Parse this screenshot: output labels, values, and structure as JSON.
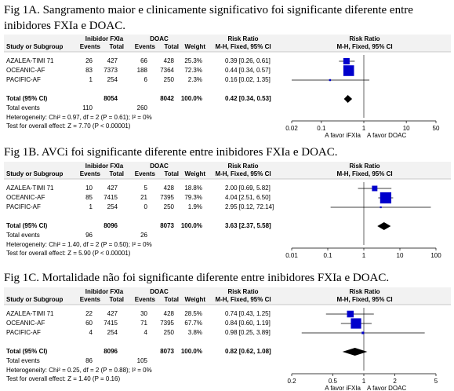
{
  "figures": [
    {
      "caption": "Fig 1A. Sangramento maior e clinicamente significativo foi significante diferente entre inibidores FXIa e DOAC.",
      "group1": "Inibidor FXIa",
      "group2": "DOAC",
      "rr_header": "Risk Ratio",
      "rr_header_plot": "Risk Ratio",
      "col_headers": [
        "Study or Subgroup",
        "Events",
        "Total",
        "Events",
        "Total",
        "Weight",
        "M-H, Fixed, 95% CI",
        "M-H, Fixed, 95% CI"
      ],
      "rows": [
        {
          "study": "AZALEA-TIMI 71",
          "e1": 26,
          "n1": 427,
          "e2": 66,
          "n2": 428,
          "weight": 25.3,
          "weight_label": "25.3%",
          "rr": 0.39,
          "lo": 0.26,
          "hi": 0.61,
          "rr_label": "0.39 [0.26, 0.61]"
        },
        {
          "study": "OCEANIC-AF",
          "e1": 83,
          "n1": 7373,
          "e2": 188,
          "n2": 7364,
          "weight": 72.3,
          "weight_label": "72.3%",
          "rr": 0.44,
          "lo": 0.34,
          "hi": 0.57,
          "rr_label": "0.44 [0.34, 0.57]"
        },
        {
          "study": "PACIFIC-AF",
          "e1": 1,
          "n1": 254,
          "e2": 6,
          "n2": 250,
          "weight": 2.3,
          "weight_label": "2.3%",
          "rr": 0.16,
          "lo": 0.02,
          "hi": 1.35,
          "rr_label": "0.16 [0.02, 1.35]"
        }
      ],
      "total": {
        "label": "Total (95% CI)",
        "n1": 8054,
        "n2": 8042,
        "weight_label": "100.0%",
        "rr": 0.42,
        "lo": 0.34,
        "hi": 0.53,
        "rr_label": "0.42 [0.34, 0.53]"
      },
      "total_events": {
        "label": "Total events",
        "e1": 110,
        "e2": 260
      },
      "heterogeneity": "Heterogeneity: Chi² = 0.97, df = 2 (P = 0.61); I² = 0%",
      "overall_test": "Test for overall effect: Z = 7.70 (P < 0.00001)",
      "axis": {
        "log": true,
        "xlim": [
          0.02,
          50
        ],
        "xticks": [
          0.02,
          0.1,
          1,
          10,
          50
        ],
        "favors": [
          "A favor iFXIa",
          "A favor DOAC"
        ]
      }
    },
    {
      "caption": "Fig 1B. AVCi foi significante diferente entre inibidores FXIa e DOAC.",
      "group1": "Inibidor FXIa",
      "group2": "DOAC",
      "rr_header": "Risk Ratio",
      "rr_header_plot": "Risk Ratio",
      "col_headers": [
        "Study or Subgroup",
        "Events",
        "Total",
        "Events",
        "Total",
        "Weight",
        "M-H, Fixed, 95% CI",
        "M-H, Fixed, 95% CI"
      ],
      "rows": [
        {
          "study": "AZALEA-TIMI 71",
          "e1": 10,
          "n1": 427,
          "e2": 5,
          "n2": 428,
          "weight": 18.8,
          "weight_label": "18.8%",
          "rr": 2.0,
          "lo": 0.69,
          "hi": 5.82,
          "rr_label": "2.00 [0.69, 5.82]"
        },
        {
          "study": "OCEANIC-AF",
          "e1": 85,
          "n1": 7415,
          "e2": 21,
          "n2": 7395,
          "weight": 79.3,
          "weight_label": "79.3%",
          "rr": 4.04,
          "lo": 2.51,
          "hi": 6.5,
          "rr_label": "4.04 [2.51, 6.50]"
        },
        {
          "study": "PACIFIC-AF",
          "e1": 1,
          "n1": 254,
          "e2": 0,
          "n2": 250,
          "weight": 1.9,
          "weight_label": "1.9%",
          "rr": 2.95,
          "lo": 0.12,
          "hi": 72.14,
          "rr_label": "2.95 [0.12, 72.14]"
        }
      ],
      "total": {
        "label": "Total (95% CI)",
        "n1": 8096,
        "n2": 8073,
        "weight_label": "100.0%",
        "rr": 3.63,
        "lo": 2.37,
        "hi": 5.58,
        "rr_label": "3.63 [2.37, 5.58]"
      },
      "total_events": {
        "label": "Total events",
        "e1": 96,
        "e2": 26
      },
      "heterogeneity": "Heterogeneity: Chi² = 1.40, df = 2 (P = 0.50); I² = 0%",
      "overall_test": "Test for overall effect: Z = 5.90 (P < 0.00001)",
      "axis": {
        "log": true,
        "xlim": [
          0.01,
          100
        ],
        "xticks": [
          0.01,
          0.1,
          1,
          10,
          100
        ],
        "favors": []
      }
    },
    {
      "caption": "Fig 1C. Mortalidade não foi significante diferente entre inibidores FXIa e DOAC.",
      "group1": "Inibidor FXIa",
      "group2": "DOAC",
      "rr_header": "Risk Ratio",
      "rr_header_plot": "Risk Ratio",
      "col_headers": [
        "Study or Subgroup",
        "Events",
        "Total",
        "Events",
        "Total",
        "Weight",
        "M-H, Fixed, 95% CI",
        "M-H, Fixed, 95% CI"
      ],
      "rows": [
        {
          "study": "AZALEA-TIMI 71",
          "e1": 22,
          "n1": 427,
          "e2": 30,
          "n2": 428,
          "weight": 28.5,
          "weight_label": "28.5%",
          "rr": 0.74,
          "lo": 0.43,
          "hi": 1.25,
          "rr_label": "0.74 [0.43, 1.25]"
        },
        {
          "study": "OCEANIC-AF",
          "e1": 60,
          "n1": 7415,
          "e2": 71,
          "n2": 7395,
          "weight": 67.7,
          "weight_label": "67.7%",
          "rr": 0.84,
          "lo": 0.6,
          "hi": 1.19,
          "rr_label": "0.84 [0.60, 1.19]"
        },
        {
          "study": "PACIFIC-AF",
          "e1": 4,
          "n1": 254,
          "e2": 4,
          "n2": 250,
          "weight": 3.8,
          "weight_label": "3.8%",
          "rr": 0.98,
          "lo": 0.25,
          "hi": 3.89,
          "rr_label": "0.98 [0.25, 3.89]"
        }
      ],
      "total": {
        "label": "Total (95% CI)",
        "n1": 8096,
        "n2": 8073,
        "weight_label": "100.0%",
        "rr": 0.82,
        "lo": 0.62,
        "hi": 1.08,
        "rr_label": "0.82 [0.62, 1.08]"
      },
      "total_events": {
        "label": "Total events",
        "e1": 86,
        "e2": 105
      },
      "heterogeneity": "Heterogeneity: Chi² = 0.25, df = 2 (P = 0.88); I² = 0%",
      "overall_test": "Test for overall effect: Z = 1.40 (P = 0.16)",
      "axis": {
        "log": true,
        "xlim": [
          0.2,
          5
        ],
        "xticks": [
          0.2,
          0.5,
          1,
          2,
          5
        ],
        "favors": [
          "A favor iFXIa",
          "A favor DOAC"
        ]
      }
    }
  ]
}
